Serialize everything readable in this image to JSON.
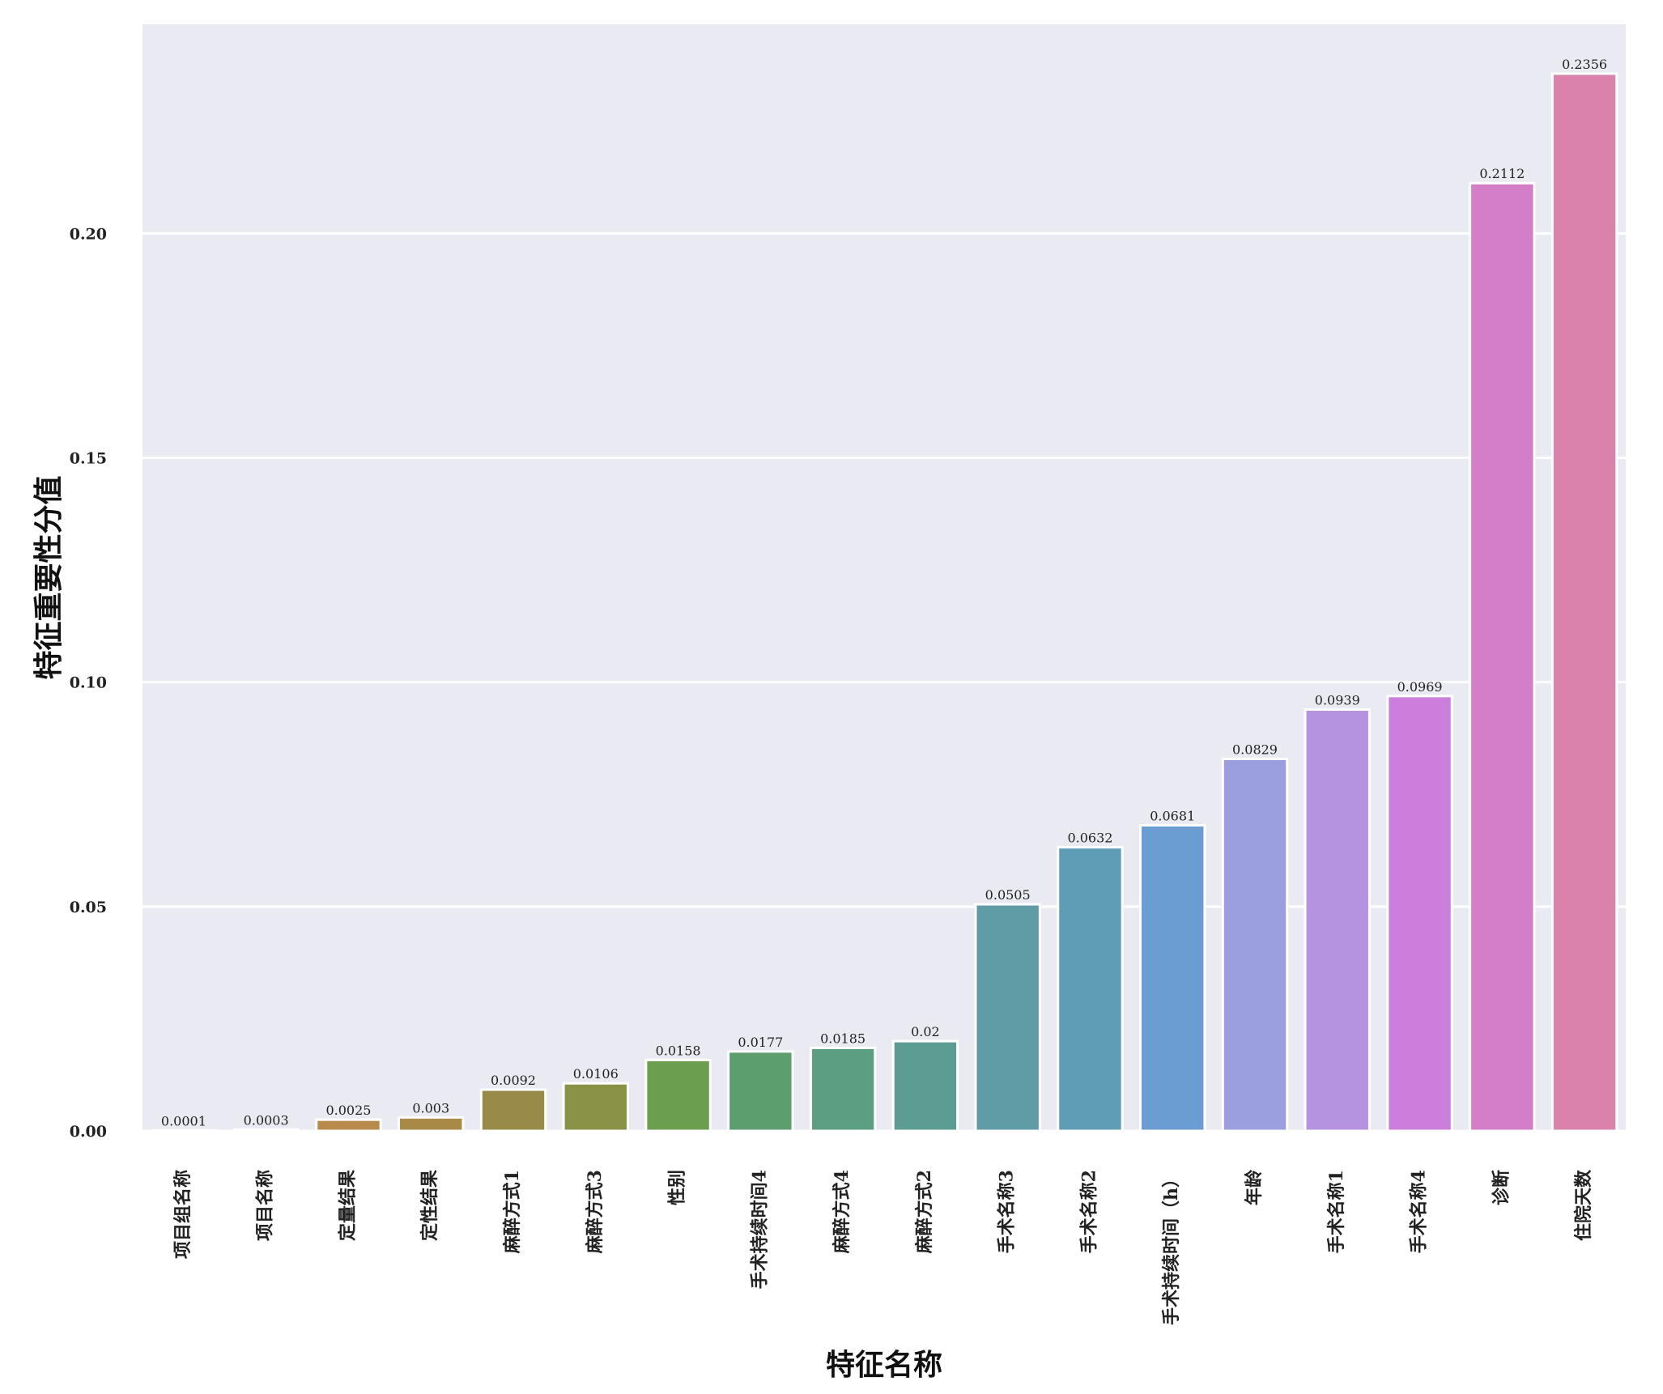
{
  "chart_data": {
    "type": "bar",
    "xlabel": "特征名称",
    "ylabel": "特征重要性分值",
    "ylim": [
      0,
      0.2466
    ],
    "yticks": [
      "0.00",
      "0.05",
      "0.10",
      "0.15",
      "0.20"
    ],
    "grid": true,
    "categories": [
      "项目组名称",
      "项目名称",
      "定量结果",
      "定性结果",
      "麻醉方式1",
      "麻醉方式3",
      "性别",
      "手术持续时间4",
      "麻醉方式4",
      "麻醉方式2",
      "手术名称3",
      "手术名称2",
      "手术持续时间（h）",
      "年龄",
      "手术名称1",
      "手术名称4",
      "诊断",
      "住院天数"
    ],
    "values": [
      0.0001,
      0.0003,
      0.0025,
      0.003,
      0.0092,
      0.0106,
      0.0158,
      0.0177,
      0.0185,
      0.02,
      0.0505,
      0.0632,
      0.0681,
      0.0829,
      0.0939,
      0.0969,
      0.2112,
      0.2356
    ],
    "value_labels": [
      "0.0001",
      "0.0003",
      "0.0025",
      "0.003",
      "0.0092",
      "0.0106",
      "0.0158",
      "0.0177",
      "0.0185",
      "0.02",
      "0.0505",
      "0.0632",
      "0.0681",
      "0.0829",
      "0.0939",
      "0.0969",
      "0.2112",
      "0.2356"
    ],
    "colors": [
      "#ce8a9a",
      "#c68a66",
      "#b88a4b",
      "#a88a46",
      "#988a48",
      "#8a9248",
      "#6b9e4f",
      "#5c9e6e",
      "#5c9e82",
      "#5c9c92",
      "#5f9ca6",
      "#5f9cb6",
      "#6b9dd2",
      "#9b9fe0",
      "#b693e0",
      "#cb7edc",
      "#d57ec8",
      "#d882ac"
    ],
    "plot_background": "#eaeaf2",
    "grid_color": "#ffffff"
  }
}
